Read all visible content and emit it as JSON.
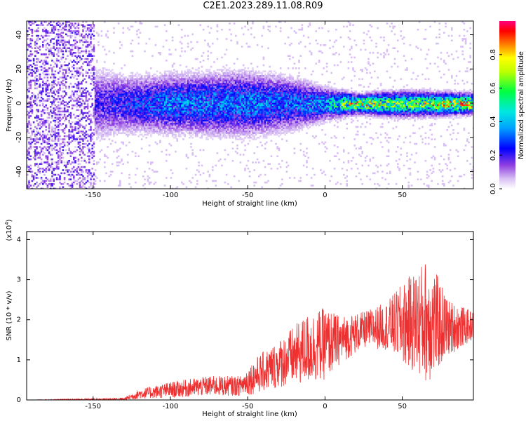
{
  "title": "C2E1.2023.289.11.08.R09",
  "chart_data": [
    {
      "type": "heatmap",
      "xlabel": "Height of straight line (km)",
      "ylabel": "Frequency (Hz)",
      "xlim": [
        -193,
        96
      ],
      "ylim": [
        -50,
        48
      ],
      "x_ticks": [
        -150,
        -100,
        -50,
        0,
        50
      ],
      "y_ticks": [
        -40,
        -20,
        0,
        20,
        40
      ],
      "colorbar": {
        "label": "Normalized spectral amplitude",
        "ticks": [
          0.0,
          0.2,
          0.4,
          0.6,
          0.8
        ],
        "range": [
          0,
          1
        ],
        "colors": [
          "#ffffff",
          "#c8a0f0",
          "#8000e0",
          "#0000ff",
          "#00e0ff",
          "#00ff00",
          "#ffff00",
          "#ff0000",
          "#ff0080"
        ]
      },
      "ridge": {
        "center_freq": 0,
        "profile": [
          {
            "x": -193,
            "amp": 0.15,
            "spread": 45
          },
          {
            "x": -150,
            "amp": 0.18,
            "spread": 12
          },
          {
            "x": -130,
            "amp": 0.25,
            "spread": 9
          },
          {
            "x": -100,
            "amp": 0.35,
            "spread": 9
          },
          {
            "x": -50,
            "amp": 0.35,
            "spread": 10
          },
          {
            "x": -20,
            "amp": 0.32,
            "spread": 8
          },
          {
            "x": 0,
            "amp": 0.4,
            "spread": 5
          },
          {
            "x": 20,
            "amp": 0.75,
            "spread": 3
          },
          {
            "x": 50,
            "amp": 0.6,
            "spread": 4
          },
          {
            "x": 96,
            "amp": 0.85,
            "spread": 3
          }
        ]
      }
    },
    {
      "type": "line",
      "xlabel": "Height of straight line (km)",
      "ylabel": "SNR (10 * v/v)",
      "y_multiplier": "(x10",
      "y_multiplier_exp": "4",
      "y_multiplier_close": ")",
      "xlim": [
        -193,
        96
      ],
      "ylim": [
        0,
        4.2
      ],
      "x_ticks": [
        -150,
        -100,
        -50,
        0,
        50
      ],
      "y_ticks": [
        0,
        1,
        2,
        3,
        4
      ],
      "color": "#ee3030",
      "envelope": [
        {
          "x": -193,
          "mean": 0.0,
          "amp": 0.0
        },
        {
          "x": -130,
          "mean": 0.02,
          "amp": 0.04
        },
        {
          "x": -120,
          "mean": 0.15,
          "amp": 0.12
        },
        {
          "x": -100,
          "mean": 0.25,
          "amp": 0.2
        },
        {
          "x": -75,
          "mean": 0.35,
          "amp": 0.25
        },
        {
          "x": -55,
          "mean": 0.35,
          "amp": 0.25
        },
        {
          "x": -45,
          "mean": 0.6,
          "amp": 0.45
        },
        {
          "x": -30,
          "mean": 0.9,
          "amp": 0.6
        },
        {
          "x": -10,
          "mean": 1.3,
          "amp": 0.9
        },
        {
          "x": 0,
          "mean": 1.4,
          "amp": 0.9
        },
        {
          "x": 10,
          "mean": 1.5,
          "amp": 0.6
        },
        {
          "x": 25,
          "mean": 1.75,
          "amp": 0.45
        },
        {
          "x": 40,
          "mean": 1.85,
          "amp": 0.6
        },
        {
          "x": 50,
          "mean": 1.9,
          "amp": 1.0
        },
        {
          "x": 67,
          "mean": 2.0,
          "amp": 1.6
        },
        {
          "x": 80,
          "mean": 1.8,
          "amp": 0.7
        },
        {
          "x": 96,
          "mean": 1.85,
          "amp": 0.35
        }
      ]
    }
  ]
}
